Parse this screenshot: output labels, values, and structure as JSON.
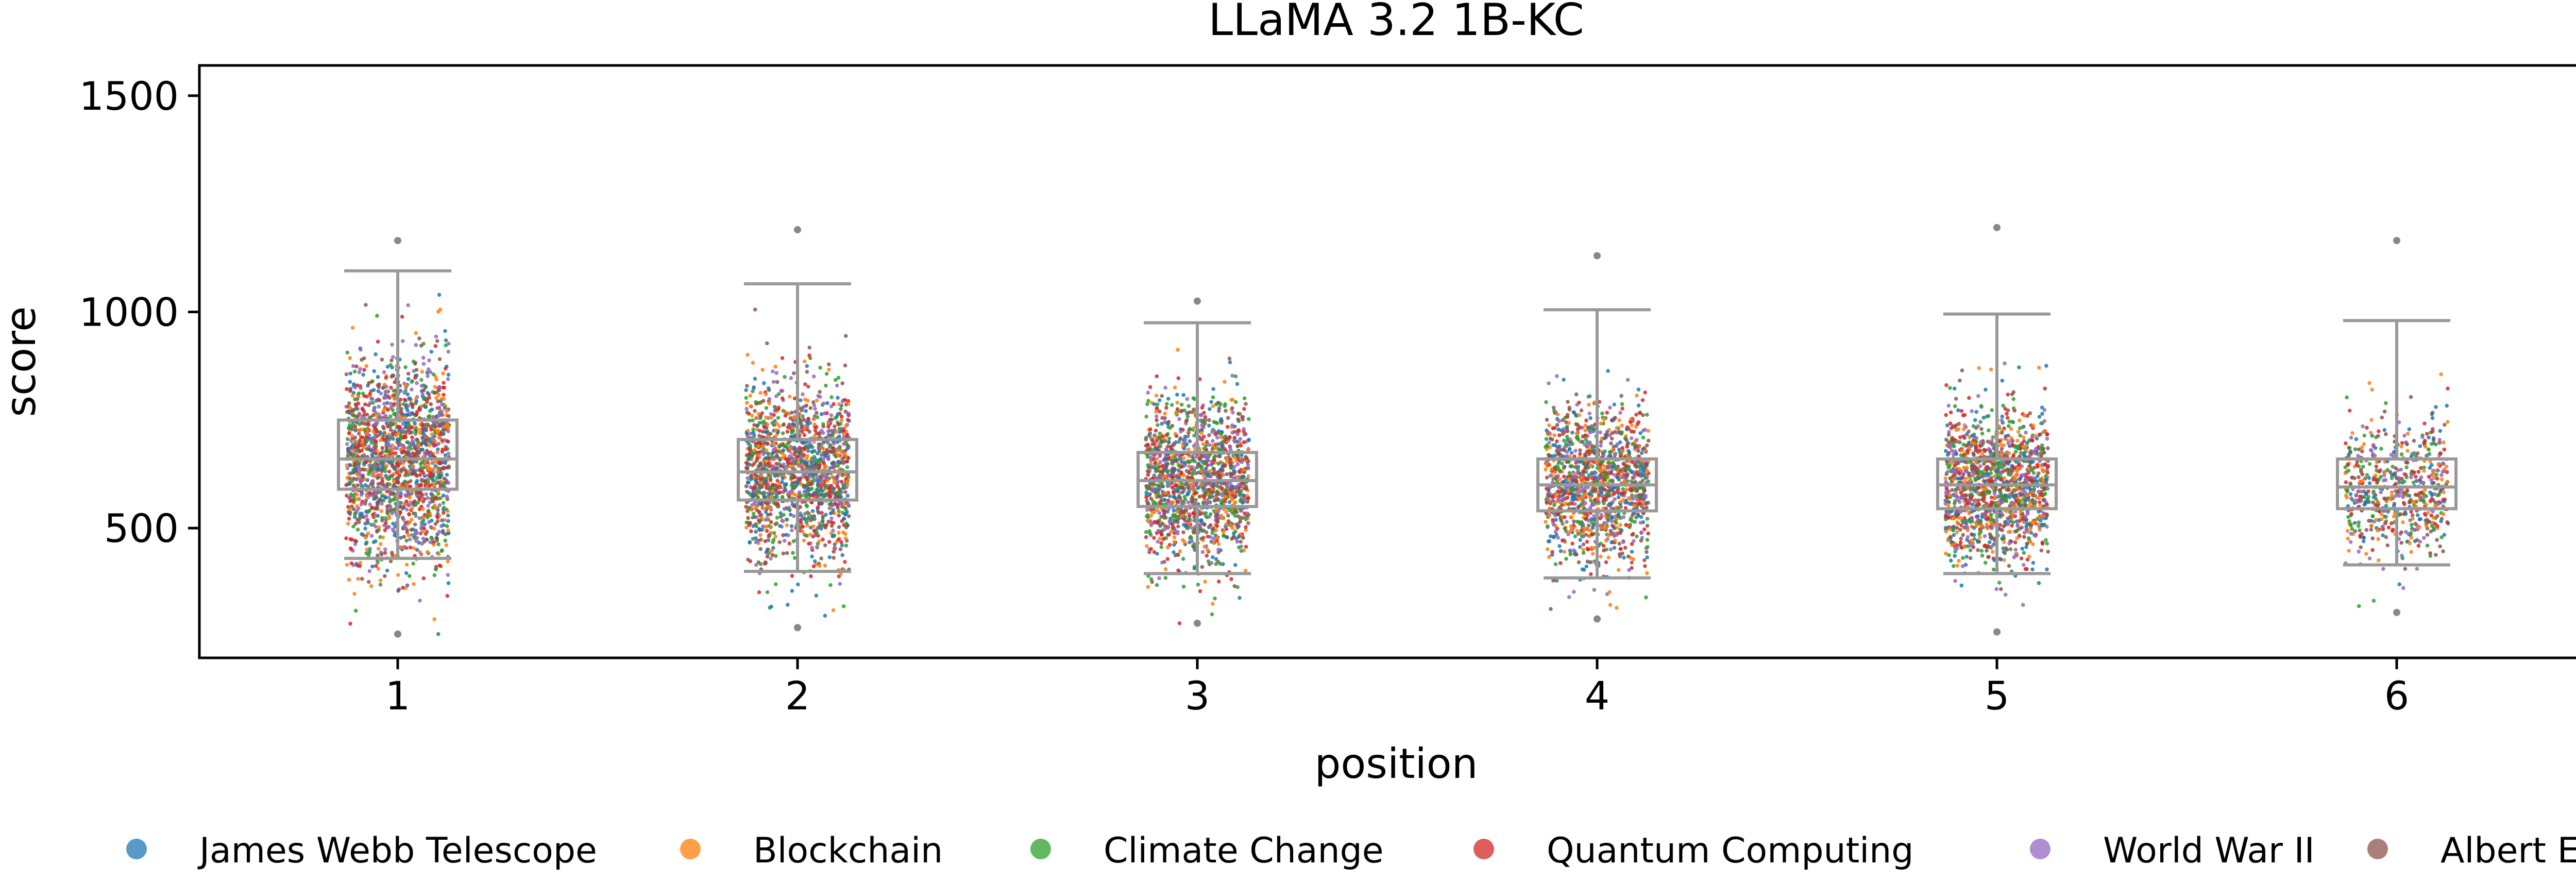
{
  "chart_data": {
    "type": "box-strip",
    "title": "LLaMA 3.2 1B-KC",
    "xlabel": "position",
    "ylabel": "score",
    "categories": [
      "1",
      "2",
      "3",
      "4",
      "5",
      "6"
    ],
    "ylim": [
      200,
      1570
    ],
    "yticks": [
      500,
      1000,
      1500
    ],
    "grid": false,
    "legend_position": "bottom",
    "box_color": "#999999",
    "series": [
      {
        "name": "James Webb Telescope",
        "color": "#1f77b4"
      },
      {
        "name": "Blockchain",
        "color": "#ff7f0e"
      },
      {
        "name": "Climate Change",
        "color": "#2ca02c"
      },
      {
        "name": "Quantum Computing",
        "color": "#d62728"
      },
      {
        "name": "World War II",
        "color": "#9467bd"
      },
      {
        "name": "Albert Einstein",
        "color": "#8c564b"
      }
    ],
    "boxes": [
      {
        "position": "1",
        "whisker_low": 430,
        "q1": 590,
        "median": 660,
        "q3": 750,
        "whisker_high": 1095,
        "min": 255,
        "max": 1165,
        "n": 1700
      },
      {
        "position": "2",
        "whisker_low": 400,
        "q1": 565,
        "median": 630,
        "q3": 705,
        "whisker_high": 1065,
        "min": 270,
        "max": 1190,
        "n": 1500
      },
      {
        "position": "3",
        "whisker_low": 395,
        "q1": 550,
        "median": 610,
        "q3": 675,
        "whisker_high": 975,
        "min": 280,
        "max": 1025,
        "n": 1400
      },
      {
        "position": "4",
        "whisker_low": 385,
        "q1": 540,
        "median": 600,
        "q3": 660,
        "whisker_high": 1005,
        "min": 290,
        "max": 1130,
        "n": 1300
      },
      {
        "position": "5",
        "whisker_low": 395,
        "q1": 545,
        "median": 600,
        "q3": 660,
        "whisker_high": 995,
        "min": 260,
        "max": 1195,
        "n": 1400
      },
      {
        "position": "6",
        "whisker_low": 415,
        "q1": 545,
        "median": 595,
        "q3": 660,
        "whisker_high": 980,
        "min": 305,
        "max": 1165,
        "n": 600
      }
    ]
  }
}
